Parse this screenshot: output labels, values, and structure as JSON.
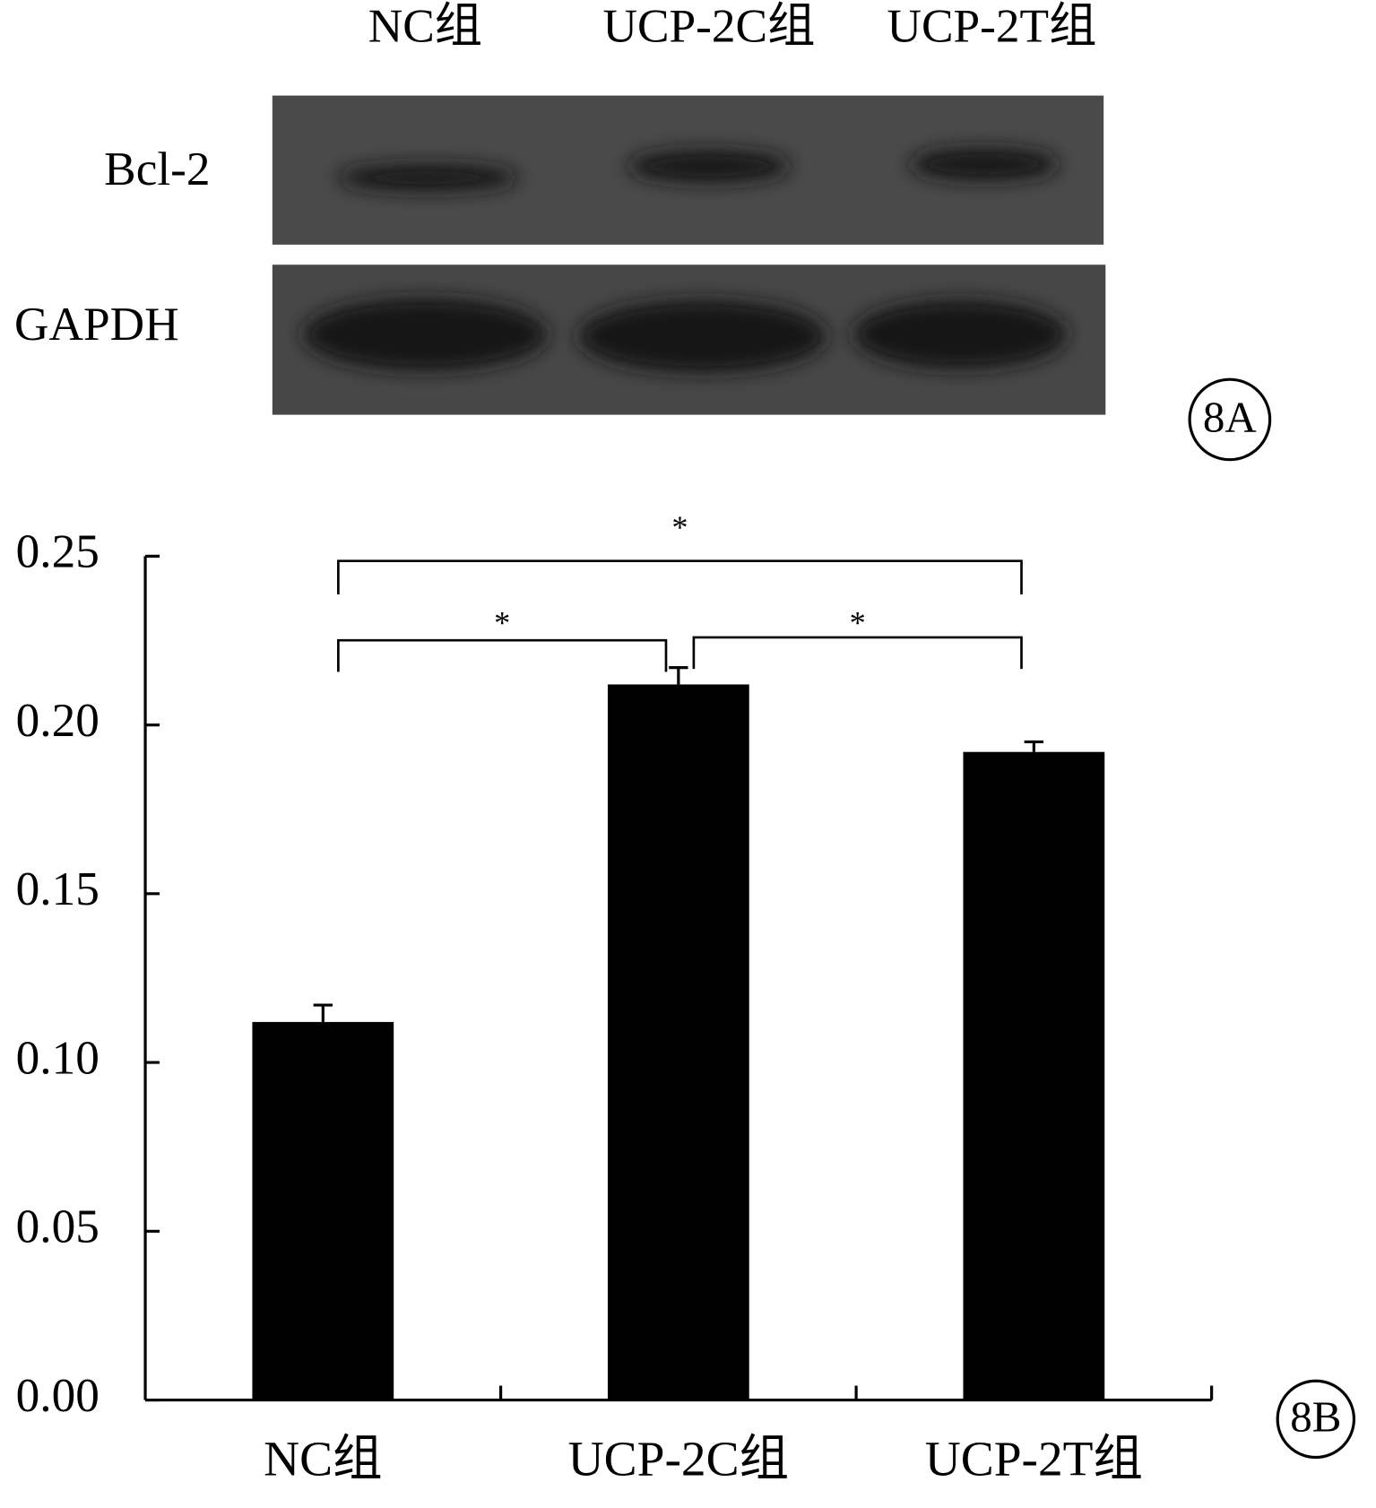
{
  "blot": {
    "lanes": [
      "NC组",
      "UCP-2C组",
      "UCP-2T组"
    ],
    "rows": [
      "Bcl-2",
      "GAPDH"
    ],
    "panel": "8A"
  },
  "chart_data": {
    "type": "bar",
    "panel": "8B",
    "categories": [
      "NC组",
      "UCP-2C组",
      "UCP-2T组"
    ],
    "values": [
      0.112,
      0.212,
      0.192
    ],
    "errors": [
      0.005,
      0.005,
      0.003
    ],
    "color": "#000000",
    "ylim": [
      0,
      0.25
    ],
    "yticks": [
      {
        "value": 0,
        "label": "0.00"
      },
      {
        "value": 0.05,
        "label": "0.05"
      },
      {
        "value": 0.1,
        "label": "0.10"
      },
      {
        "value": 0.15,
        "label": "0.15"
      },
      {
        "value": 0.2,
        "label": "0.20"
      },
      {
        "value": 0.25,
        "label": "0.25"
      }
    ],
    "annotations": [
      "*",
      "*",
      "*"
    ]
  }
}
